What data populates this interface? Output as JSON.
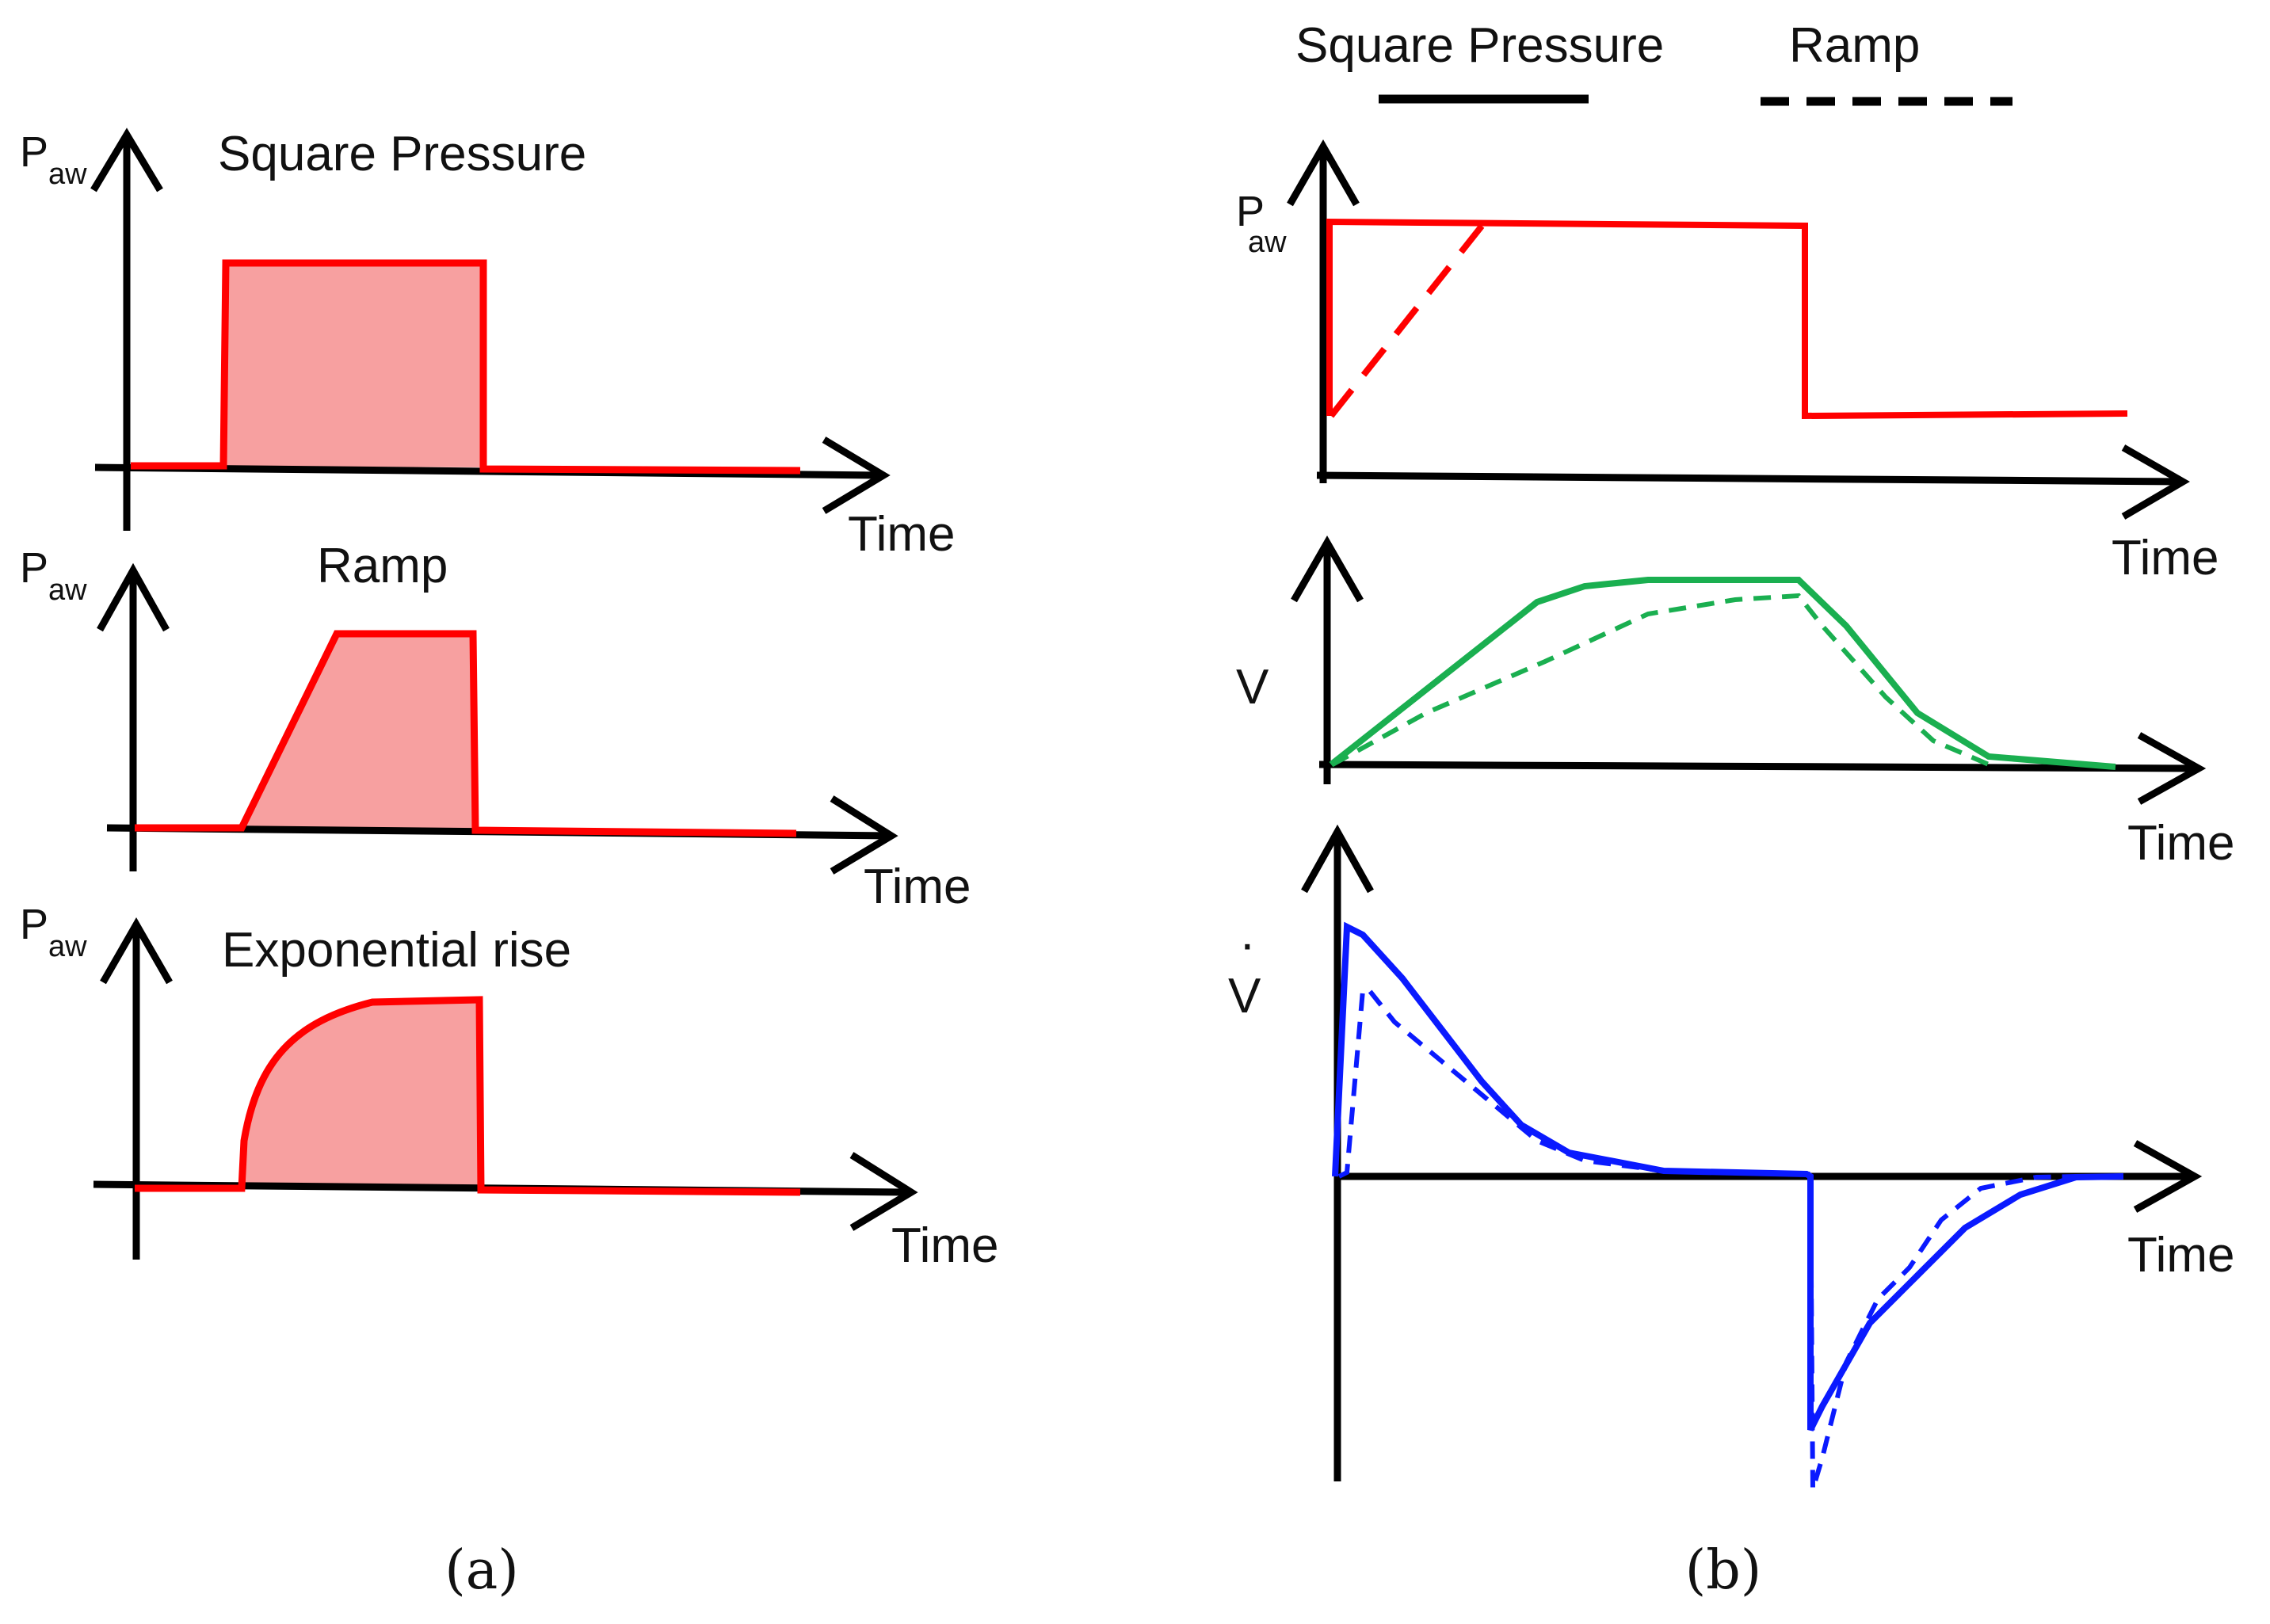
{
  "panel_a": {
    "label": "(a)",
    "axis_y_main": "P",
    "axis_y_sub": "aw",
    "axis_x": "Time",
    "waveforms": [
      {
        "title": "Square Pressure",
        "shape": "square"
      },
      {
        "title": "Ramp",
        "shape": "ramp"
      },
      {
        "title": "Exponential rise",
        "shape": "exponential"
      }
    ]
  },
  "panel_b": {
    "label": "(b)",
    "legend": {
      "square": {
        "label": "Square Pressure",
        "style": "solid"
      },
      "ramp": {
        "label": "Ramp",
        "style": "dashed"
      }
    },
    "plots": [
      {
        "id": "pressure",
        "ylabel_main": "P",
        "ylabel_sub": "aw",
        "xlabel": "Time"
      },
      {
        "id": "volume",
        "ylabel": "V",
        "xlabel": "Time"
      },
      {
        "id": "flow",
        "ylabel": "V",
        "ylabel_dot": "·",
        "xlabel": "Time"
      }
    ]
  },
  "colors": {
    "pressure": "#ff0000",
    "pressure_fill": "#f7a0a0",
    "volume": "#1aaf50",
    "flow": "#0a1aff",
    "axis": "#000000"
  }
}
